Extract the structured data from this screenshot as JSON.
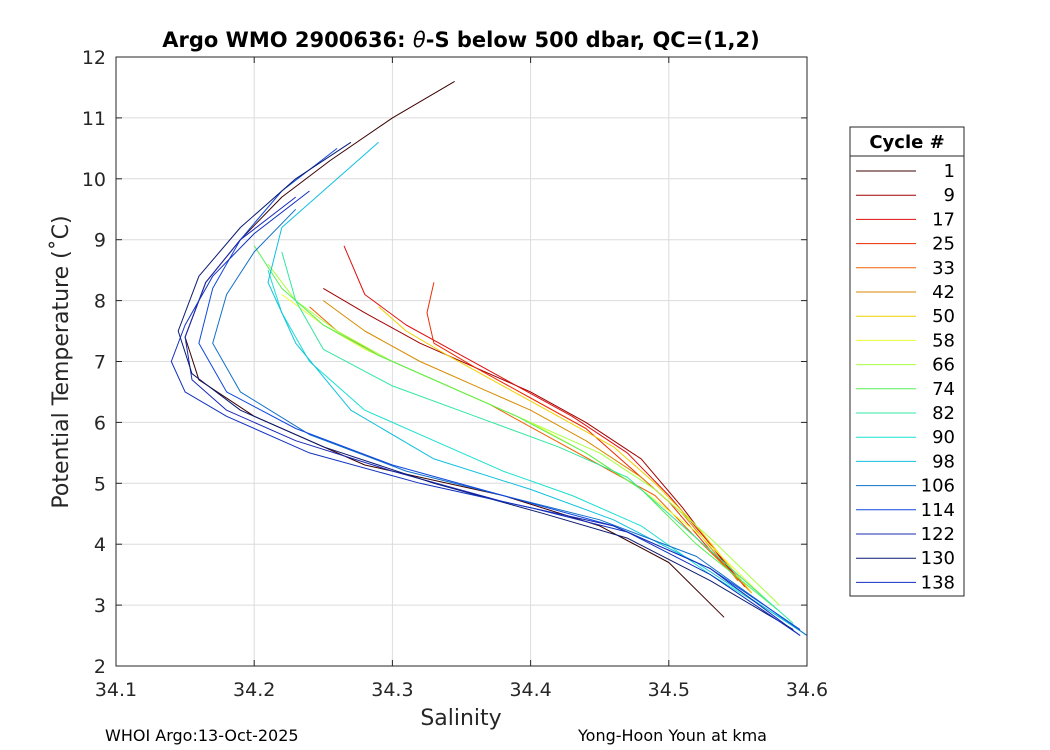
{
  "chart_data": {
    "type": "line",
    "title_prefix": "Argo WMO 2900636: ",
    "title_theta": "θ",
    "title_suffix": "-S below 500 dbar,  QC=(1,2)",
    "xlabel": "Salinity",
    "ylabel": "Potential Temperature (˚C)",
    "xlim": [
      34.1,
      34.6
    ],
    "ylim": [
      2,
      12
    ],
    "x_ticks": [
      "34.1",
      "34.2",
      "34.3",
      "34.4",
      "34.5",
      "34.6"
    ],
    "y_ticks": [
      "2",
      "3",
      "4",
      "5",
      "6",
      "7",
      "8",
      "9",
      "10",
      "11",
      "12"
    ],
    "grid": true,
    "legend": {
      "title": "Cycle #",
      "placement": "right",
      "entries": [
        "1",
        "9",
        "17",
        "25",
        "33",
        "42",
        "50",
        "58",
        "66",
        "74",
        "82",
        "90",
        "98",
        "106",
        "114",
        "122",
        "130",
        "138"
      ],
      "colors": [
        "#3b0000",
        "#a00000",
        "#e01010",
        "#ee2a00",
        "#f06000",
        "#d88a00",
        "#f0d000",
        "#e8ff30",
        "#a8ff40",
        "#58f058",
        "#30e8a0",
        "#18e0d0",
        "#10c0e0",
        "#1070c8",
        "#1048e0",
        "#1828b8",
        "#0a1a70",
        "#1030c0"
      ]
    },
    "series": [
      {
        "name": "1",
        "x": [
          34.345,
          34.3,
          34.255,
          34.22,
          34.19,
          34.165,
          34.15,
          34.16,
          34.2,
          34.28,
          34.38,
          34.45,
          34.5,
          34.54
        ],
        "y": [
          11.6,
          11.0,
          10.3,
          9.7,
          9.0,
          8.3,
          7.4,
          6.7,
          6.1,
          5.3,
          4.8,
          4.3,
          3.7,
          2.8
        ]
      },
      {
        "name": "9",
        "x": [
          34.25,
          34.28,
          34.32,
          34.36,
          34.4,
          34.44,
          34.48,
          34.51,
          34.55
        ],
        "y": [
          8.2,
          7.8,
          7.3,
          6.9,
          6.5,
          6.0,
          5.4,
          4.6,
          3.4
        ]
      },
      {
        "name": "17",
        "x": [
          34.265,
          34.28,
          34.31,
          34.35,
          34.39,
          34.43,
          34.47,
          34.5,
          34.53,
          34.555
        ],
        "y": [
          8.9,
          8.1,
          7.6,
          7.1,
          6.6,
          6.1,
          5.5,
          4.8,
          4.0,
          3.3
        ]
      },
      {
        "name": "25",
        "x": [
          34.33,
          34.325,
          34.33,
          34.36,
          34.4,
          34.44,
          34.47,
          34.5,
          34.53,
          34.56
        ],
        "y": [
          8.3,
          7.8,
          7.3,
          6.9,
          6.4,
          5.9,
          5.3,
          4.7,
          3.9,
          3.2
        ]
      },
      {
        "name": "33",
        "x": [
          34.24,
          34.26,
          34.29,
          34.33,
          34.37,
          34.41,
          34.45,
          34.49,
          34.52,
          34.56
        ],
        "y": [
          7.9,
          7.5,
          7.1,
          6.7,
          6.3,
          5.8,
          5.3,
          4.8,
          4.1,
          3.2
        ]
      },
      {
        "name": "42",
        "x": [
          34.25,
          34.28,
          34.32,
          34.36,
          34.4,
          34.44,
          34.48,
          34.51,
          34.55
        ],
        "y": [
          8.0,
          7.5,
          7.0,
          6.6,
          6.2,
          5.7,
          5.1,
          4.5,
          3.4
        ]
      },
      {
        "name": "50",
        "x": [
          34.29,
          34.31,
          34.34,
          34.38,
          34.42,
          34.46,
          34.49,
          34.52,
          34.56
        ],
        "y": [
          7.9,
          7.5,
          7.1,
          6.6,
          6.1,
          5.6,
          5.0,
          4.3,
          3.2
        ]
      },
      {
        "name": "58",
        "x": [
          34.22,
          34.25,
          34.28,
          34.32,
          34.36,
          34.4,
          34.44,
          34.48,
          34.52,
          34.57
        ],
        "y": [
          8.1,
          7.6,
          7.2,
          6.8,
          6.4,
          6.0,
          5.5,
          4.9,
          4.2,
          3.1
        ]
      },
      {
        "name": "66",
        "x": [
          34.21,
          34.23,
          34.26,
          34.3,
          34.35,
          34.4,
          34.45,
          34.49,
          34.53,
          34.58
        ],
        "y": [
          8.6,
          8.0,
          7.5,
          7.0,
          6.5,
          6.0,
          5.5,
          4.9,
          4.1,
          3.0
        ]
      },
      {
        "name": "74",
        "x": [
          34.2,
          34.22,
          34.25,
          34.29,
          34.34,
          34.39,
          34.44,
          34.48,
          34.52,
          34.58
        ],
        "y": [
          8.9,
          8.2,
          7.6,
          7.1,
          6.6,
          6.1,
          5.5,
          4.9,
          4.0,
          2.9
        ]
      },
      {
        "name": "82",
        "x": [
          34.22,
          34.23,
          34.25,
          34.3,
          34.36,
          34.42,
          34.47,
          34.5,
          34.54,
          34.59
        ],
        "y": [
          8.8,
          8.0,
          7.2,
          6.6,
          6.1,
          5.6,
          5.1,
          4.5,
          3.7,
          2.7
        ]
      },
      {
        "name": "90",
        "x": [
          34.21,
          34.22,
          34.24,
          34.28,
          34.33,
          34.38,
          34.43,
          34.48,
          34.53,
          34.595
        ],
        "y": [
          8.5,
          7.8,
          7.0,
          6.2,
          5.7,
          5.2,
          4.8,
          4.3,
          3.5,
          2.6
        ]
      },
      {
        "name": "98",
        "x": [
          34.29,
          34.26,
          34.22,
          34.21,
          34.23,
          34.27,
          34.33,
          34.4,
          34.46,
          34.52,
          34.6
        ],
        "y": [
          10.6,
          10.0,
          9.2,
          8.3,
          7.3,
          6.2,
          5.4,
          4.9,
          4.4,
          3.7,
          2.5
        ]
      },
      {
        "name": "106",
        "x": [
          34.23,
          34.2,
          34.18,
          34.17,
          34.19,
          34.24,
          34.31,
          34.38,
          34.45,
          34.52,
          34.6
        ],
        "y": [
          9.5,
          8.8,
          8.1,
          7.3,
          6.5,
          5.8,
          5.2,
          4.8,
          4.4,
          3.8,
          2.5
        ]
      },
      {
        "name": "114",
        "x": [
          34.26,
          34.22,
          34.19,
          34.17,
          34.16,
          34.18,
          34.23,
          34.3,
          34.38,
          34.46,
          34.53,
          34.595
        ],
        "y": [
          10.5,
          9.8,
          9.0,
          8.2,
          7.3,
          6.5,
          5.9,
          5.3,
          4.8,
          4.3,
          3.6,
          2.6
        ]
      },
      {
        "name": "122",
        "x": [
          34.23,
          34.19,
          34.165,
          34.15,
          34.155,
          34.18,
          34.23,
          34.3,
          34.38,
          34.46,
          34.53,
          34.595
        ],
        "y": [
          9.7,
          9.0,
          8.3,
          7.4,
          6.7,
          6.2,
          5.7,
          5.2,
          4.7,
          4.3,
          3.6,
          2.5
        ]
      },
      {
        "name": "130",
        "x": [
          34.27,
          34.23,
          34.19,
          34.16,
          34.145,
          34.155,
          34.19,
          34.25,
          34.33,
          34.41,
          34.47,
          34.53,
          34.59
        ],
        "y": [
          10.6,
          10.0,
          9.2,
          8.4,
          7.5,
          6.8,
          6.2,
          5.6,
          5.0,
          4.5,
          4.1,
          3.4,
          2.6
        ]
      },
      {
        "name": "138",
        "x": [
          34.24,
          34.2,
          34.17,
          34.15,
          34.14,
          34.15,
          34.18,
          34.24,
          34.32,
          34.4,
          34.47,
          34.53,
          34.595
        ],
        "y": [
          9.8,
          9.1,
          8.4,
          7.6,
          7.0,
          6.5,
          6.1,
          5.5,
          5.0,
          4.6,
          4.2,
          3.5,
          2.5
        ]
      }
    ]
  },
  "footer": {
    "left": "WHOI Argo:13-Oct-2025",
    "right": "Yong-Hoon Youn at kma"
  }
}
